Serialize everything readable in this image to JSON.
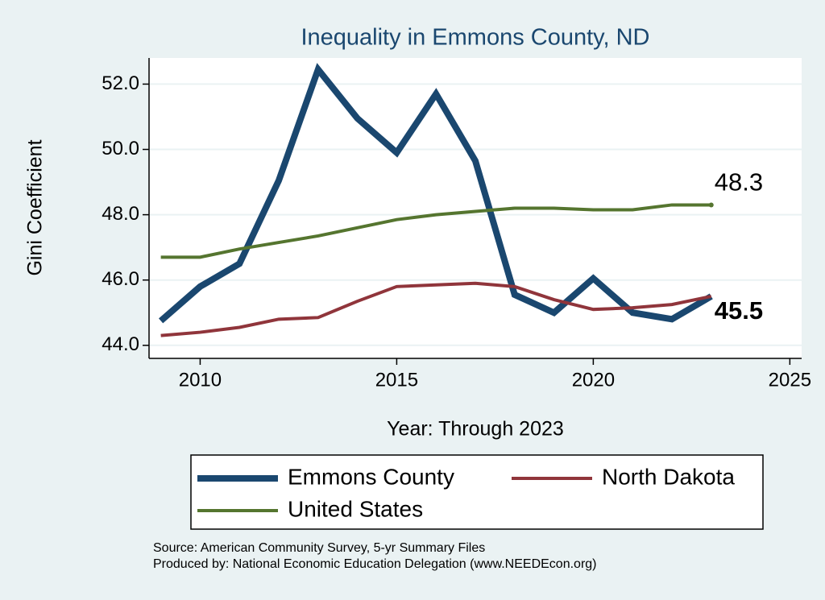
{
  "chart_data": {
    "type": "line",
    "title": "Inequality in Emmons County, ND",
    "x_label": "Year: Through 2023",
    "y_label": "Gini Coefficient",
    "x": [
      2009,
      2010,
      2011,
      2012,
      2013,
      2014,
      2015,
      2016,
      2017,
      2018,
      2019,
      2020,
      2021,
      2022,
      2023
    ],
    "series": [
      {
        "name": "Emmons County",
        "color": "#1a476f",
        "width": 8,
        "end_label": true,
        "end_label_bold": true,
        "values": [
          44.75,
          45.8,
          46.5,
          49.05,
          52.45,
          50.95,
          49.9,
          51.7,
          49.65,
          45.55,
          45.0,
          46.05,
          45.0,
          44.8,
          45.5
        ]
      },
      {
        "name": "North Dakota",
        "color": "#90353b",
        "width": 4,
        "end_label": false,
        "values": [
          44.3,
          44.4,
          44.55,
          44.8,
          44.85,
          45.35,
          45.8,
          45.85,
          45.9,
          45.8,
          45.4,
          45.1,
          45.15,
          45.25,
          45.5
        ]
      },
      {
        "name": "United States",
        "color": "#55752f",
        "width": 4,
        "end_label": true,
        "end_label_bold": false,
        "values": [
          46.7,
          46.7,
          46.95,
          47.15,
          47.35,
          47.6,
          47.85,
          48.0,
          48.1,
          48.2,
          48.2,
          48.15,
          48.15,
          48.3,
          48.3
        ]
      }
    ],
    "xlim": [
      2008.7,
      2025.3
    ],
    "xticks": [
      2010,
      2015,
      2020,
      2025
    ],
    "ylim": [
      43.6,
      52.8
    ],
    "yticks": [
      {
        "value": 44,
        "label": "44.0"
      },
      {
        "value": 46,
        "label": "46.0"
      },
      {
        "value": 48,
        "label": "48.0"
      },
      {
        "value": 50,
        "label": "50.0"
      },
      {
        "value": 52,
        "label": "52.0"
      }
    ],
    "grid": true,
    "footnotes": [
      "Source: American Community Survey, 5-yr Summary Files",
      "Produced by: National Economic Education Delegation (www.NEEDEcon.org)"
    ]
  }
}
